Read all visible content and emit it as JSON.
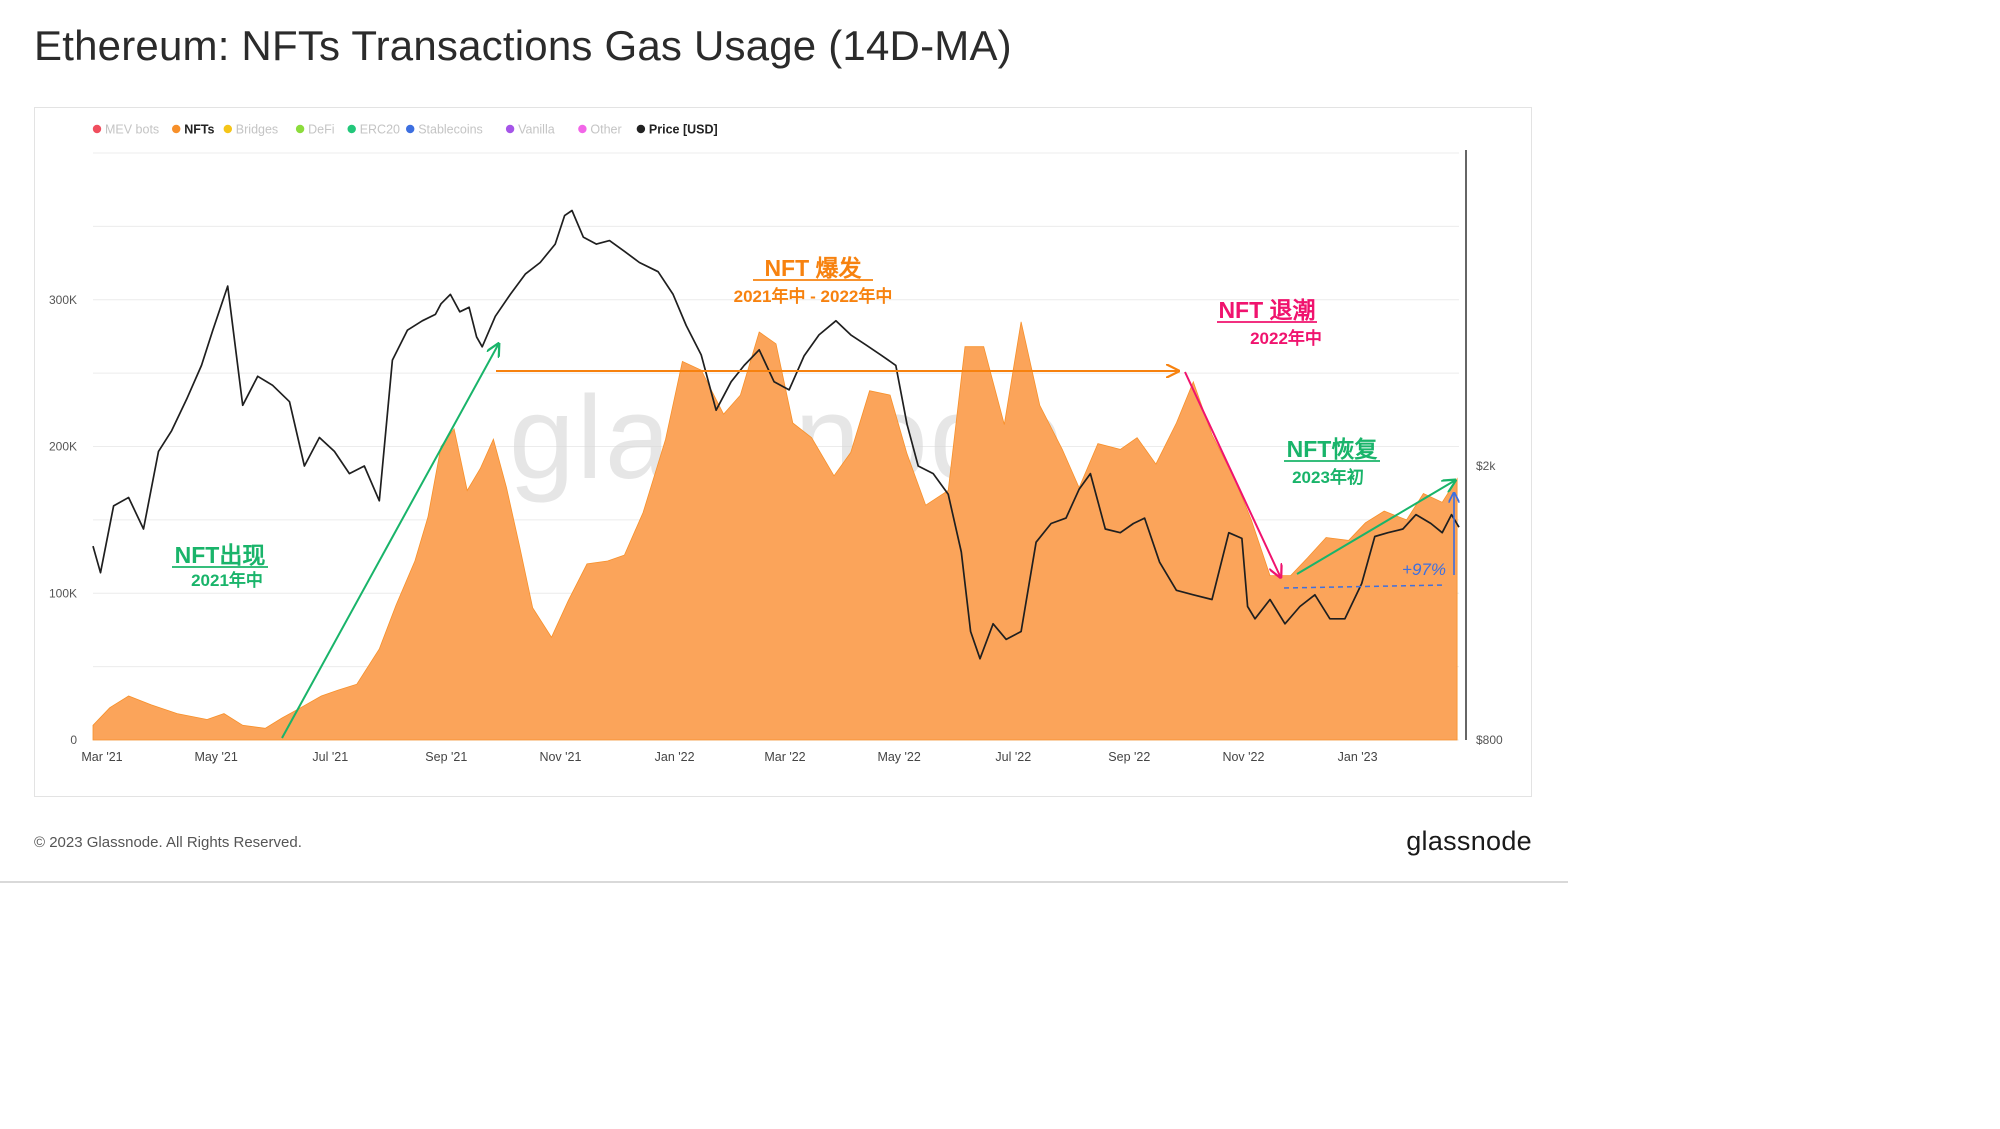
{
  "title": "Ethereum: NFTs Transactions Gas Usage (14D-MA)",
  "footer": {
    "copyright": "© 2023 Glassnode. All Rights Reserved.",
    "brand": "glassnode"
  },
  "watermark": "glassnode",
  "legend": [
    {
      "label": "MEV bots",
      "color": "#f04e5e",
      "active": false
    },
    {
      "label": "NFTs",
      "color": "#f7902a",
      "active": true
    },
    {
      "label": "Bridges",
      "color": "#f5c518",
      "active": false
    },
    {
      "label": "DeFi",
      "color": "#8cdc3c",
      "active": false
    },
    {
      "label": "ERC20",
      "color": "#22c77a",
      "active": false
    },
    {
      "label": "Stablecoins",
      "color": "#3d6fe0",
      "active": false
    },
    {
      "label": "Vanilla",
      "color": "#a555e8",
      "active": false
    },
    {
      "label": "Other",
      "color": "#f266e8",
      "active": false
    },
    {
      "label": "Price [USD]",
      "color": "#222222",
      "active": true
    }
  ],
  "annotations": {
    "emerge": {
      "title": "NFT出现",
      "sub": "2021年中",
      "color": "#19b46a"
    },
    "boom": {
      "title": "NFT 爆发",
      "sub": "2021年中 - 2022年中",
      "color": "#f7820f"
    },
    "ebb": {
      "title": "NFT 退潮",
      "sub": "2022年中",
      "color": "#f0136e"
    },
    "recovery": {
      "title": "NFT恢复",
      "sub": "2023年初",
      "color": "#19b46a"
    },
    "change": {
      "label": "+97%",
      "color": "#3d6fe0"
    }
  },
  "chart_data": {
    "type": "area",
    "x_ticks": [
      "Mar '21",
      "May '21",
      "Jul '21",
      "Sep '21",
      "Nov '21",
      "Jan '22",
      "Mar '22",
      "May '22",
      "Jul '22",
      "Sep '22",
      "Nov '22",
      "Jan '23"
    ],
    "y_ticks_left": [
      "0",
      "100K",
      "200K",
      "300K"
    ],
    "y_ticks_right": [
      "$800",
      "$2k"
    ],
    "ylim_left": [
      0,
      400000
    ],
    "grid": true,
    "legend_position": "top-left",
    "series": [
      {
        "name": "NFTs",
        "axis": "left",
        "color": "#fba45a",
        "x": [
          "2021-03-01",
          "2021-03-10",
          "2021-03-20",
          "2021-04-01",
          "2021-04-15",
          "2021-05-01",
          "2021-05-10",
          "2021-05-20",
          "2021-06-01",
          "2021-06-10",
          "2021-06-20",
          "2021-07-01",
          "2021-07-10",
          "2021-07-20",
          "2021-08-01",
          "2021-08-10",
          "2021-08-20",
          "2021-08-27",
          "2021-09-03",
          "2021-09-10",
          "2021-09-17",
          "2021-09-24",
          "2021-10-01",
          "2021-10-08",
          "2021-10-15",
          "2021-10-22",
          "2021-11-01",
          "2021-11-10",
          "2021-11-20",
          "2021-12-01",
          "2021-12-10",
          "2021-12-20",
          "2022-01-01",
          "2022-01-10",
          "2022-01-20",
          "2022-02-01",
          "2022-02-10",
          "2022-02-20",
          "2022-03-01",
          "2022-03-10",
          "2022-03-20",
          "2022-04-01",
          "2022-04-10",
          "2022-04-20",
          "2022-05-01",
          "2022-05-10",
          "2022-05-20",
          "2022-06-01",
          "2022-06-10",
          "2022-06-20",
          "2022-07-01",
          "2022-07-10",
          "2022-07-20",
          "2022-08-01",
          "2022-08-10",
          "2022-08-20",
          "2022-09-01",
          "2022-09-10",
          "2022-09-20",
          "2022-10-01",
          "2022-10-10",
          "2022-10-20",
          "2022-11-01",
          "2022-11-10",
          "2022-11-20",
          "2022-12-01",
          "2022-12-10",
          "2022-12-20",
          "2023-01-01",
          "2023-01-10",
          "2023-01-20",
          "2023-02-01",
          "2023-02-10",
          "2023-02-20",
          "2023-02-28"
        ],
        "values": [
          10000,
          22000,
          30000,
          24000,
          18000,
          14000,
          18000,
          10000,
          8000,
          15000,
          22000,
          30000,
          34000,
          38000,
          62000,
          92000,
          122000,
          152000,
          200000,
          212000,
          170000,
          185000,
          205000,
          172000,
          132000,
          90000,
          70000,
          95000,
          120000,
          122000,
          126000,
          155000,
          205000,
          258000,
          252000,
          222000,
          235000,
          278000,
          270000,
          216000,
          206000,
          180000,
          196000,
          238000,
          235000,
          195000,
          160000,
          170000,
          268000,
          268000,
          215000,
          285000,
          228000,
          198000,
          172000,
          202000,
          198000,
          206000,
          188000,
          216000,
          244000,
          208000,
          178000,
          150000,
          112000,
          112000,
          124000,
          138000,
          136000,
          148000,
          156000,
          150000,
          168000,
          162000,
          178000
        ]
      },
      {
        "name": "Price [USD]",
        "axis": "right",
        "color": "#1f1f1f",
        "x": [
          "2021-03-01",
          "2021-03-05",
          "2021-03-12",
          "2021-03-20",
          "2021-03-28",
          "2021-04-05",
          "2021-04-12",
          "2021-04-20",
          "2021-04-28",
          "2021-05-04",
          "2021-05-12",
          "2021-05-20",
          "2021-05-28",
          "2021-06-05",
          "2021-06-14",
          "2021-06-22",
          "2021-06-30",
          "2021-07-08",
          "2021-07-16",
          "2021-07-24",
          "2021-08-01",
          "2021-08-08",
          "2021-08-16",
          "2021-08-24",
          "2021-08-31",
          "2021-09-03",
          "2021-09-08",
          "2021-09-13",
          "2021-09-18",
          "2021-09-22",
          "2021-09-25",
          "2021-10-02",
          "2021-10-10",
          "2021-10-18",
          "2021-10-26",
          "2021-11-03",
          "2021-11-08",
          "2021-11-12",
          "2021-11-18",
          "2021-11-25",
          "2021-12-02",
          "2021-12-10",
          "2021-12-18",
          "2021-12-28",
          "2022-01-05",
          "2022-01-12",
          "2022-01-20",
          "2022-01-28",
          "2022-02-05",
          "2022-02-12",
          "2022-02-20",
          "2022-02-28",
          "2022-03-08",
          "2022-03-16",
          "2022-03-24",
          "2022-04-02",
          "2022-04-10",
          "2022-04-18",
          "2022-04-26",
          "2022-05-04",
          "2022-05-10",
          "2022-05-16",
          "2022-05-24",
          "2022-06-01",
          "2022-06-08",
          "2022-06-13",
          "2022-06-18",
          "2022-06-25",
          "2022-07-02",
          "2022-07-10",
          "2022-07-18",
          "2022-07-26",
          "2022-08-03",
          "2022-08-10",
          "2022-08-16",
          "2022-08-24",
          "2022-09-01",
          "2022-09-08",
          "2022-09-14",
          "2022-09-22",
          "2022-10-01",
          "2022-10-10",
          "2022-10-20",
          "2022-10-29",
          "2022-11-05",
          "2022-11-08",
          "2022-11-12",
          "2022-11-20",
          "2022-11-28",
          "2022-12-06",
          "2022-12-14",
          "2022-12-22",
          "2022-12-30",
          "2023-01-08",
          "2023-01-15",
          "2023-01-22",
          "2023-01-30",
          "2023-02-06",
          "2023-02-14",
          "2023-02-20",
          "2023-02-25",
          "2023-03-01"
        ],
        "values": [
          1530,
          1400,
          1750,
          1800,
          1620,
          2100,
          2250,
          2500,
          2800,
          3150,
          3650,
          2450,
          2700,
          2620,
          2480,
          2000,
          2200,
          2100,
          1950,
          2000,
          1780,
          2850,
          3150,
          3250,
          3320,
          3440,
          3550,
          3350,
          3400,
          3080,
          2980,
          3300,
          3550,
          3800,
          3950,
          4200,
          4620,
          4700,
          4300,
          4200,
          4250,
          4100,
          3950,
          3830,
          3550,
          3200,
          2900,
          2410,
          2650,
          2800,
          2950,
          2650,
          2580,
          2890,
          3100,
          3250,
          3100,
          3000,
          2900,
          2800,
          2300,
          2000,
          1950,
          1820,
          1500,
          1150,
          1050,
          1180,
          1120,
          1150,
          1550,
          1650,
          1680,
          1850,
          1950,
          1620,
          1600,
          1650,
          1680,
          1450,
          1320,
          1300,
          1280,
          1600,
          1570,
          1250,
          1200,
          1280,
          1180,
          1250,
          1300,
          1200,
          1200,
          1350,
          1580,
          1600,
          1620,
          1700,
          1650,
          1600,
          1700,
          1630
        ]
      }
    ]
  }
}
